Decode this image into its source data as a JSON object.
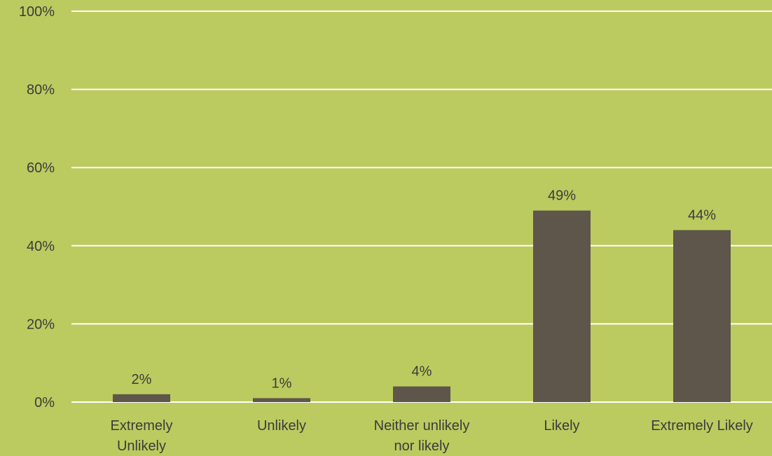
{
  "chart_data": {
    "type": "bar",
    "title": "",
    "xlabel": "",
    "ylabel": "",
    "categories": [
      [
        "Extremely",
        "Unlikely"
      ],
      [
        "Unlikely"
      ],
      [
        "Neither unlikely",
        "nor likely"
      ],
      [
        "Likely"
      ],
      [
        "Extremely Likely"
      ]
    ],
    "values": [
      2,
      1,
      4,
      49,
      44
    ],
    "value_labels": [
      "2%",
      "1%",
      "4%",
      "49%",
      "44%"
    ],
    "ylim": [
      0,
      100
    ],
    "yticks": [
      0,
      20,
      40,
      60,
      80,
      100
    ],
    "ytick_labels": [
      "0%",
      "20%",
      "40%",
      "60%",
      "80%",
      "100%"
    ],
    "grid": true,
    "legend": "none"
  },
  "colors": {
    "background": "#BBCB5F",
    "bar": "#5E554B",
    "grid": "#FFFFFF",
    "text": "#3B3B3B"
  }
}
